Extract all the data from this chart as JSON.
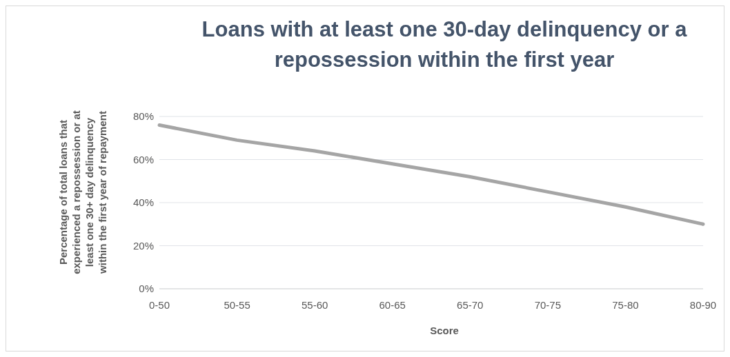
{
  "chart_data": {
    "type": "line",
    "title": "Loans with at least one 30-day delinquency or a repossession within the first year",
    "xlabel": "Score",
    "ylabel": "Percentage of total loans that experienced a repossession or at least one 30+ day delinquency within the first year of repayment",
    "categories": [
      "0-50",
      "50-55",
      "55-60",
      "60-65",
      "65-70",
      "70-75",
      "75-80",
      "80-90"
    ],
    "series": [
      {
        "color": "#a5a5a5",
        "values": [
          76,
          69,
          64,
          58,
          52,
          45,
          38,
          30
        ]
      }
    ],
    "ylim": [
      0,
      80
    ],
    "yticks": [
      {
        "value": 0,
        "label": "0%"
      },
      {
        "value": 20,
        "label": "20%"
      },
      {
        "value": 40,
        "label": "40%"
      },
      {
        "value": 60,
        "label": "60%"
      },
      {
        "value": 80,
        "label": "80%"
      }
    ],
    "grid": "y",
    "legend": false,
    "marker": "none",
    "line_style": "solid"
  }
}
